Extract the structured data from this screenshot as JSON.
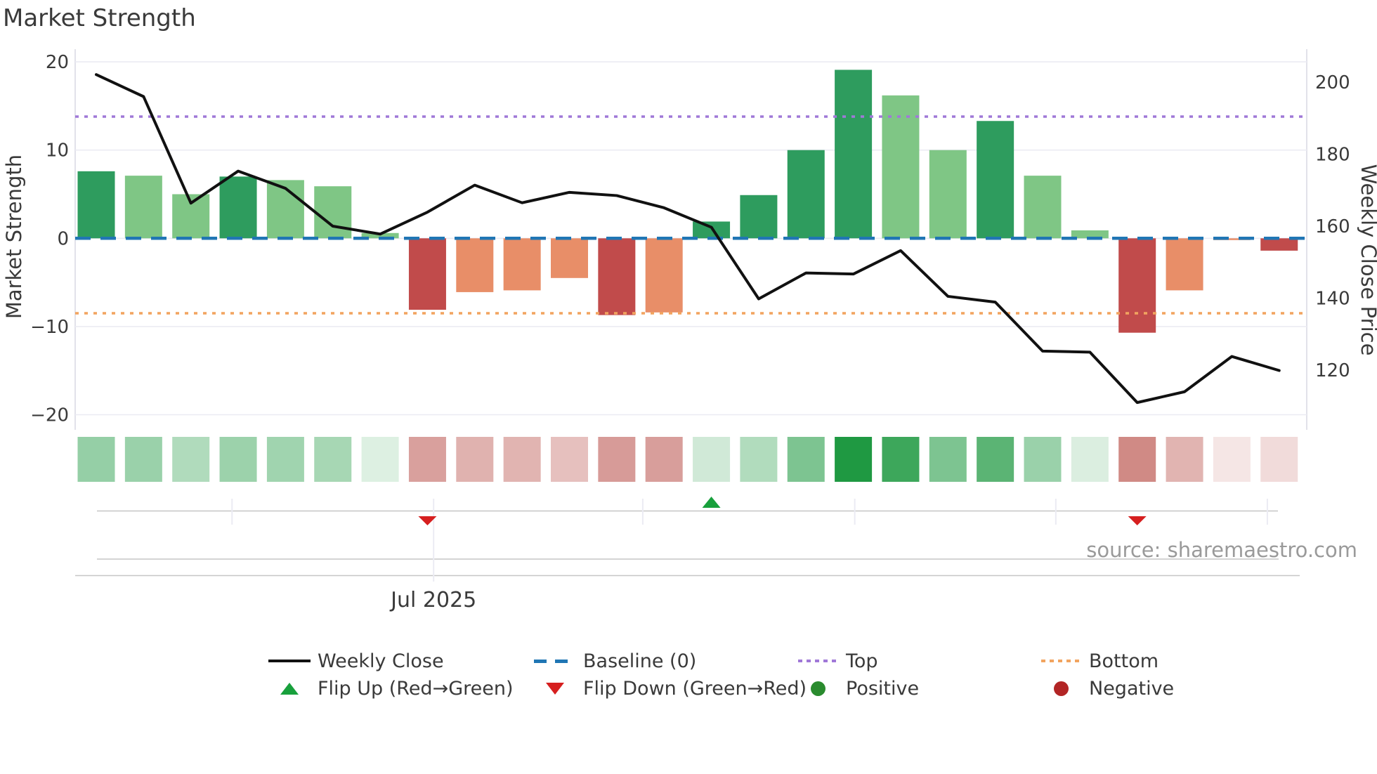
{
  "title": "Market Strength",
  "source": "source: sharemaestro.com",
  "chart_data": {
    "type": "combo-bar-line",
    "title": "Market Strength",
    "weeks": 26,
    "x_axis": {
      "tick_week_positions": [
        2.87,
        7.13,
        11.55,
        16.03,
        20.28,
        24.75
      ],
      "labeled_tick_index": 1,
      "labeled_tick_label": "Jul 2025"
    },
    "left_axis": {
      "label": "Market Strength",
      "tick_values": [
        20,
        10,
        0,
        -10,
        -20
      ],
      "tick_labels": [
        "20",
        "10",
        "0",
        "−10",
        "−20"
      ],
      "ylim": [
        -21.5,
        21.5
      ]
    },
    "right_axis": {
      "label": "Weekly Close Price",
      "tick_values": [
        200,
        180,
        160,
        140,
        120
      ],
      "tick_labels": [
        "200",
        "180",
        "160",
        "140",
        "120"
      ],
      "ylim": [
        105,
        206
      ]
    },
    "series": [
      {
        "name": "Market Strength",
        "type": "bar",
        "axis": "left",
        "values": [
          7.6,
          7.1,
          5.0,
          7.0,
          6.6,
          5.9,
          0.6,
          -8.1,
          -6.1,
          -5.9,
          -4.5,
          -8.7,
          -8.4,
          1.9,
          4.9,
          10.0,
          19.1,
          16.2,
          10.0,
          13.3,
          7.1,
          0.9,
          -10.7,
          -5.9,
          -0.2,
          -1.4
        ],
        "styles": [
          "strong-green",
          "light-green",
          "light-green",
          "strong-green",
          "light-green",
          "light-green",
          "light-green",
          "strong-red",
          "light-red",
          "light-red",
          "light-red",
          "strong-red",
          "light-red",
          "strong-green",
          "strong-green",
          "strong-green",
          "strong-green",
          "light-green",
          "light-green",
          "strong-green",
          "light-green",
          "light-green",
          "strong-red",
          "light-red",
          "light-red",
          "strong-red"
        ]
      },
      {
        "name": "Weekly Close",
        "type": "line",
        "axis": "right",
        "values": [
          202.1,
          196.0,
          166.4,
          175.3,
          170.5,
          160.0,
          157.8,
          163.9,
          171.4,
          166.5,
          169.4,
          168.5,
          165.1,
          159.7,
          139.8,
          147.0,
          146.7,
          153.2,
          140.5,
          138.9,
          125.3,
          125.0,
          111.0,
          114.0,
          123.8,
          119.9
        ]
      }
    ],
    "reference_lines": [
      {
        "name": "Baseline (0)",
        "value": 0,
        "style": "dashed",
        "color": "#2076b4"
      },
      {
        "name": "Top",
        "value": 13.8,
        "style": "dotted",
        "color": "#a078d8"
      },
      {
        "name": "Bottom",
        "value": -8.5,
        "style": "dotted",
        "color": "#f2a45f"
      }
    ],
    "heatmap_strip": {
      "colors": [
        "#95cfa6",
        "#9ad1aa",
        "#b0dbbc",
        "#9cd2ab",
        "#a0d4af",
        "#a7d7b4",
        "#ddf0e2",
        "#d9a09d",
        "#e0b2af",
        "#e1b4b1",
        "#e6c0be",
        "#d79b98",
        "#d89e9b",
        "#d0e9d7",
        "#b1dcbd",
        "#7dc491",
        "#1f9942",
        "#3da75b",
        "#7dc491",
        "#5bb474",
        "#9ad1aa",
        "#dbeee0",
        "#d08a85",
        "#e1b4b1",
        "#f5e6e5",
        "#f1dbda"
      ]
    },
    "markers": {
      "flip_up_weeks": [
        13
      ],
      "flip_down_weeks": [
        7,
        22
      ]
    }
  },
  "colors": {
    "strong_green": "#2e9c5e",
    "light_green": "#7fc685",
    "strong_red": "#c14b4b",
    "light_red": "#e88e68",
    "price_line": "#111111",
    "baseline": "#2076b4",
    "top_line": "#a078d8",
    "bottom_line": "#f2a45f",
    "flip_up": "#18a03c",
    "flip_down": "#d61f1f",
    "grid": "#ebebf3",
    "spine": "#d9d9e3",
    "marker_axis": "#c6c6c6",
    "text": "#3a3a3a",
    "source_text": "#9a9a9a"
  },
  "legend": {
    "rows": [
      [
        {
          "swatch": "line-black",
          "label": "Weekly Close"
        },
        {
          "swatch": "dash-blue",
          "label": "Baseline (0)"
        },
        {
          "swatch": "dot-purple",
          "label": "Top"
        },
        {
          "swatch": "dot-orange",
          "label": "Bottom"
        }
      ],
      [
        {
          "swatch": "tri-up",
          "label": "Flip Up (Red→Green)"
        },
        {
          "swatch": "tri-down",
          "label": "Flip Down (Green→Red)"
        },
        {
          "swatch": "dot-pos",
          "label": "Positive"
        },
        {
          "swatch": "dot-neg",
          "label": "Negative"
        }
      ]
    ]
  }
}
